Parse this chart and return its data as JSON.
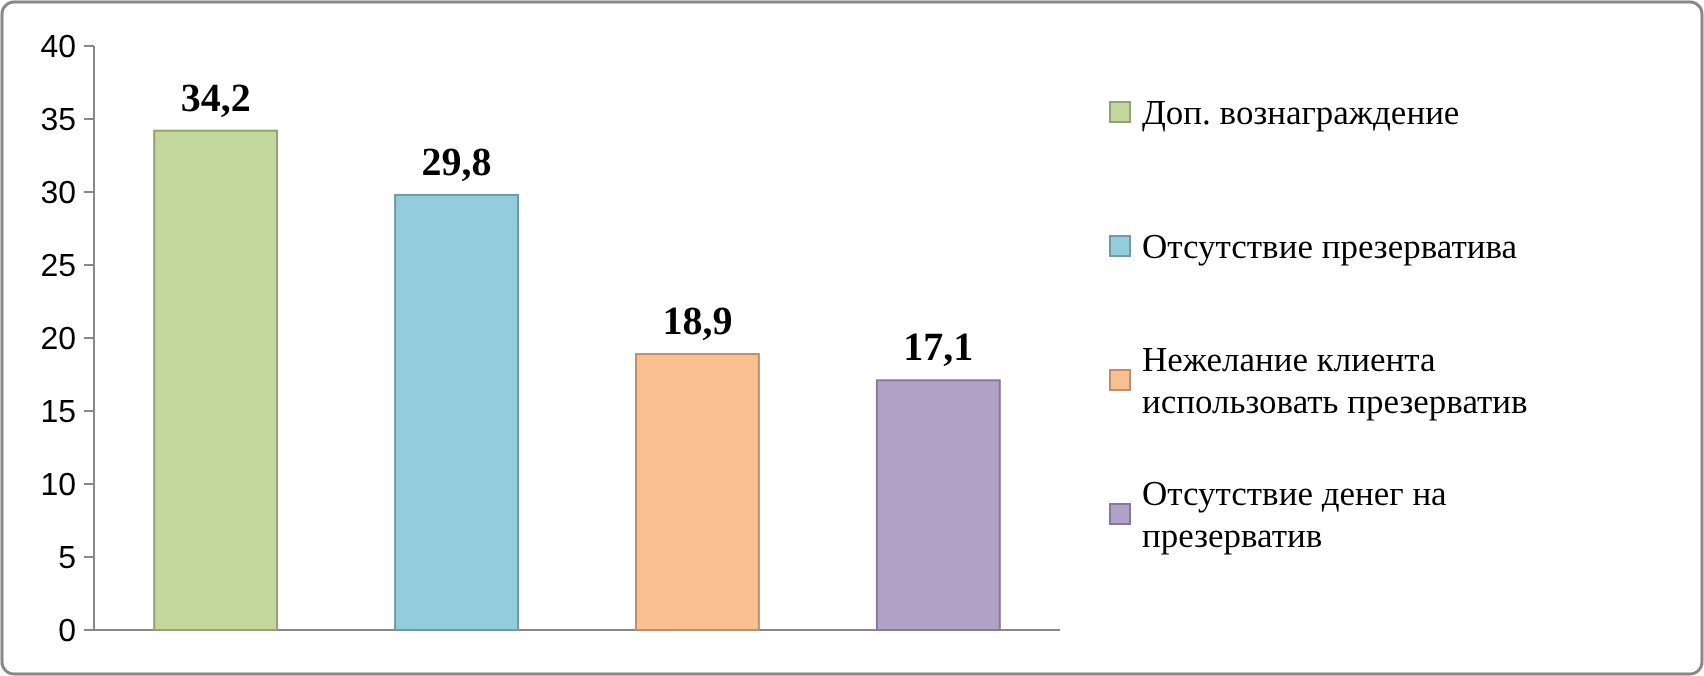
{
  "chart_data": {
    "type": "bar",
    "categories": [
      null
    ],
    "series": [
      {
        "name": "Доп. вознаграждение",
        "color": "#c3d69b",
        "values": [
          34.2
        ],
        "value_labels": [
          "34,2"
        ]
      },
      {
        "name": "Отсутствие презерватива",
        "color": "#93cddd",
        "values": [
          29.8
        ],
        "value_labels": [
          "29,8"
        ]
      },
      {
        "name": "Нежелание клиента использовать презерватив",
        "color": "#fac090",
        "values": [
          18.9
        ],
        "value_labels": [
          "18,9"
        ]
      },
      {
        "name": "Отсутствие денег на презерватив",
        "color": "#b3a2c7",
        "values": [
          17.1
        ],
        "value_labels": [
          "17,1"
        ]
      }
    ],
    "ylim": [
      0,
      40
    ],
    "yticks": [
      0,
      5,
      10,
      15,
      20,
      25,
      30,
      35,
      40
    ],
    "grid": false,
    "legend": "right"
  }
}
